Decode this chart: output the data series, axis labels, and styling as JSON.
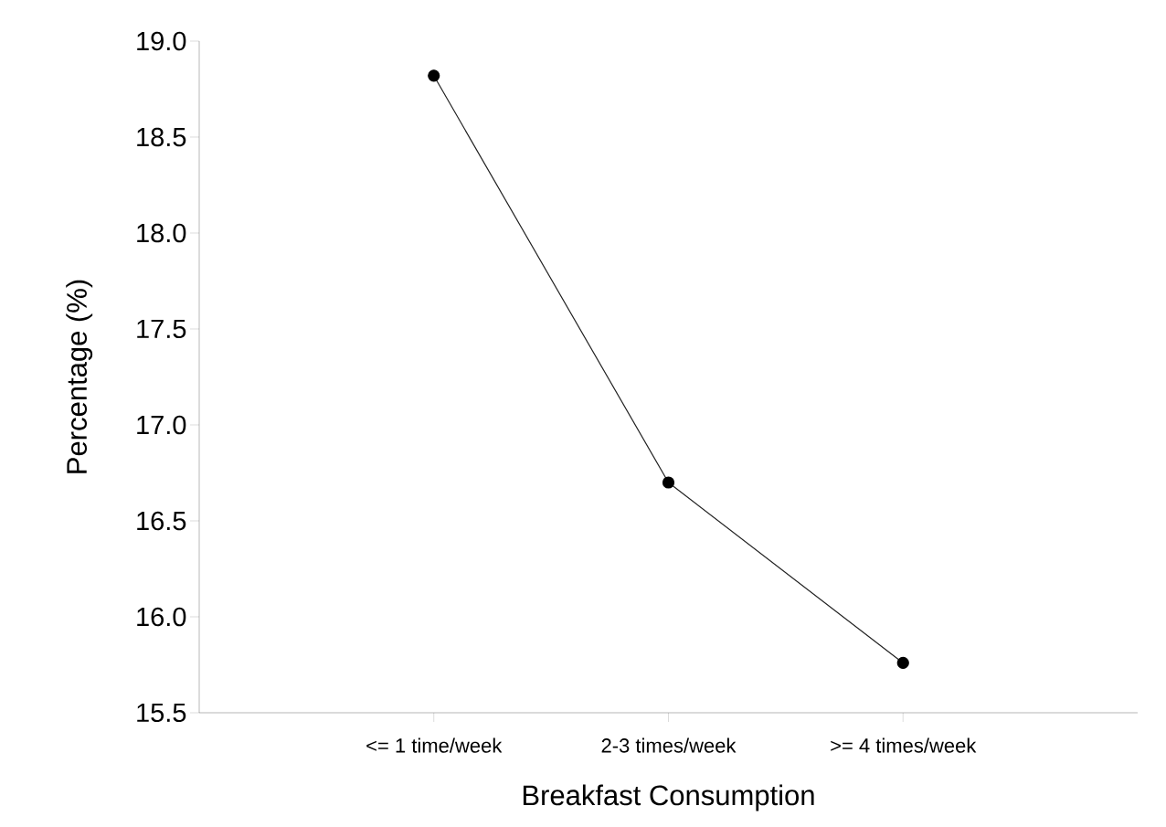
{
  "chart_data": {
    "type": "line",
    "xlabel": "Breakfast Consumption",
    "ylabel": "Percentage (%)",
    "categories": [
      "<= 1 time/week",
      "2-3 times/week",
      ">= 4 times/week"
    ],
    "values": [
      18.82,
      16.7,
      15.76
    ],
    "color": "#222222",
    "marker": "circle",
    "line_style": "solid",
    "ylim": [
      15.5,
      19.0
    ],
    "yticks": [
      {
        "value": 15.5,
        "label": "15.5"
      },
      {
        "value": 16,
        "label": "16.0"
      },
      {
        "value": 16.5,
        "label": "16.5"
      },
      {
        "value": 17,
        "label": "17.0"
      },
      {
        "value": 17.5,
        "label": "17.5"
      },
      {
        "value": 18,
        "label": "18.0"
      },
      {
        "value": 18.5,
        "label": "18.5"
      },
      {
        "value": 19,
        "label": "19.0"
      }
    ],
    "grid": false
  }
}
